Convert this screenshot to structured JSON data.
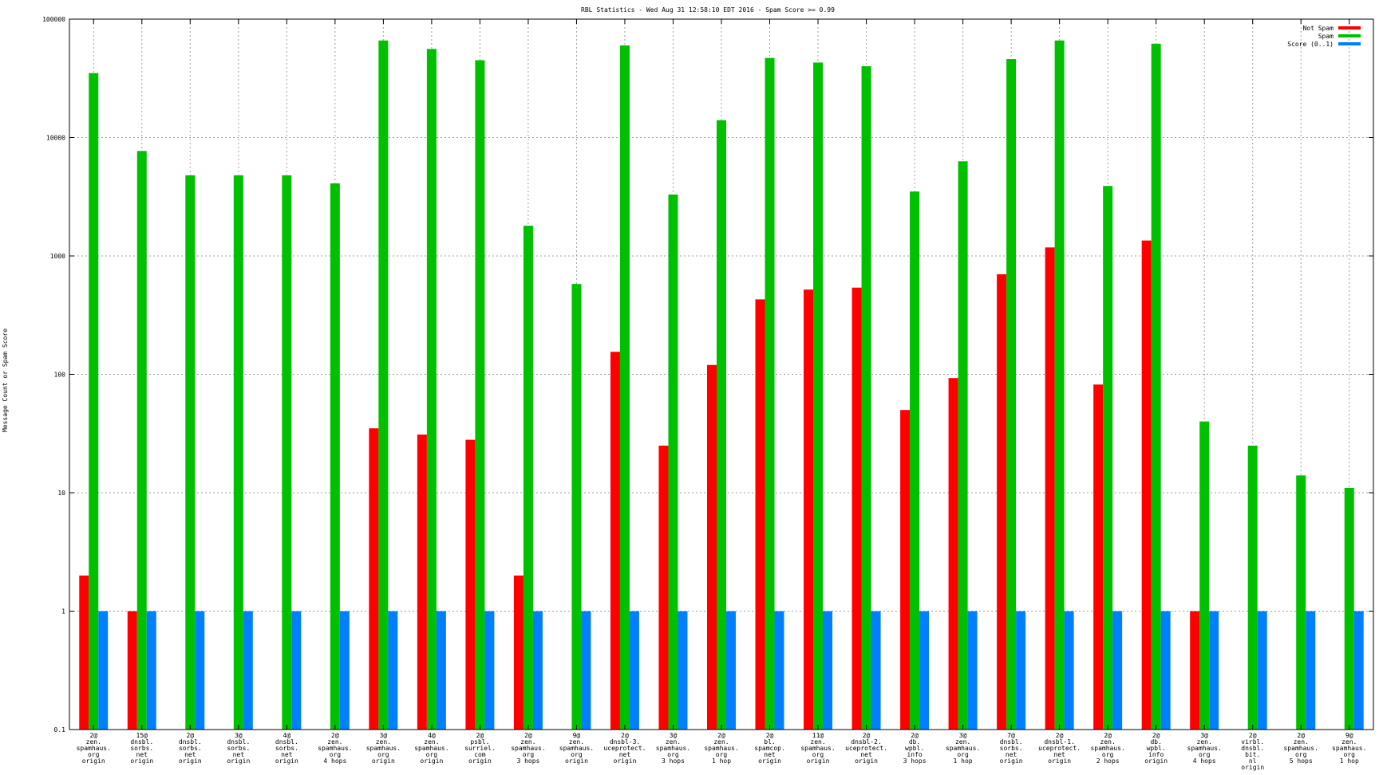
{
  "chart_data": {
    "type": "bar",
    "title": "RBL Statistics - Wed Aug 31 12:58:10 EDT 2016 - Spam Score >= 0.99",
    "xlabel": "",
    "ylabel": "Message Count or Spam Score",
    "yscale": "log",
    "ylim": [
      0.1,
      100000
    ],
    "yticks": [
      0.1,
      1,
      10,
      100,
      1000,
      10000,
      100000
    ],
    "ytick_labels": [
      "0.1",
      "1",
      "10",
      "100",
      "1000",
      "10000",
      "100000"
    ],
    "grid": true,
    "legend_position": "top-right",
    "categories": [
      [
        "2@",
        "zen.",
        "spamhaus.",
        "org",
        "origin"
      ],
      [
        "15@",
        "dnsbl.",
        "sorbs.",
        "net",
        "origin"
      ],
      [
        "2@",
        "dnsbl.",
        "sorbs.",
        "net",
        "origin"
      ],
      [
        "3@",
        "dnsbl.",
        "sorbs.",
        "net",
        "origin"
      ],
      [
        "4@",
        "dnsbl.",
        "sorbs.",
        "net",
        "origin"
      ],
      [
        "2@",
        "zen.",
        "spamhaus.",
        "org",
        "4 hops"
      ],
      [
        "3@",
        "zen.",
        "spamhaus.",
        "org",
        "origin"
      ],
      [
        "4@",
        "zen.",
        "spamhaus.",
        "org",
        "origin"
      ],
      [
        "2@",
        "psbl.",
        "surriel.",
        "com",
        "origin"
      ],
      [
        "2@",
        "zen.",
        "spamhaus.",
        "org",
        "3 hops"
      ],
      [
        "9@",
        "zen.",
        "spamhaus.",
        "org",
        "origin"
      ],
      [
        "2@",
        "dnsbl-3.",
        "uceprotect.",
        "net",
        "origin"
      ],
      [
        "3@",
        "zen.",
        "spamhaus.",
        "org",
        "3 hops"
      ],
      [
        "2@",
        "zen.",
        "spamhaus.",
        "org",
        "1 hop"
      ],
      [
        "2@",
        "bl.",
        "spamcop.",
        "net",
        "origin"
      ],
      [
        "11@",
        "zen.",
        "spamhaus.",
        "org",
        "origin"
      ],
      [
        "2@",
        "dnsbl-2.",
        "uceprotect.",
        "net",
        "origin"
      ],
      [
        "2@",
        "db.",
        "wpbl.",
        "info",
        "3 hops"
      ],
      [
        "3@",
        "zen.",
        "spamhaus.",
        "org",
        "1 hop"
      ],
      [
        "7@",
        "dnsbl.",
        "sorbs.",
        "net",
        "origin"
      ],
      [
        "2@",
        "dnsbl-1.",
        "uceprotect.",
        "net",
        "origin"
      ],
      [
        "2@",
        "zen.",
        "spamhaus.",
        "org",
        "2 hops"
      ],
      [
        "2@",
        "db.",
        "wpbl.",
        "info",
        "origin"
      ],
      [
        "3@",
        "zen.",
        "spamhaus.",
        "org",
        "4 hops"
      ],
      [
        "2@",
        "virbl.",
        "dnsbl.",
        "bit.",
        "nl",
        "origin"
      ],
      [
        "2@",
        "zen.",
        "spamhaus.",
        "org",
        "5 hops"
      ],
      [
        "9@",
        "zen.",
        "spamhaus.",
        "org",
        "1 hop"
      ]
    ],
    "series": [
      {
        "name": "Not Spam",
        "color": "#ff0000",
        "values": [
          2,
          1,
          null,
          null,
          null,
          null,
          35,
          31,
          28,
          2,
          null,
          155,
          25,
          120,
          430,
          520,
          540,
          50,
          93,
          700,
          1180,
          82,
          1350,
          1,
          null,
          null,
          null
        ]
      },
      {
        "name": "Spam",
        "color": "#00c000",
        "values": [
          35000,
          7700,
          4800,
          4800,
          4800,
          4100,
          66000,
          56000,
          45000,
          1800,
          580,
          60000,
          3300,
          14000,
          47000,
          43000,
          40000,
          3500,
          6300,
          46000,
          66000,
          3900,
          62000,
          40,
          25,
          14,
          11
        ]
      },
      {
        "name": "Score (0..1)",
        "color": "#0080ff",
        "values": [
          1,
          1,
          1,
          1,
          1,
          1,
          1,
          1,
          1,
          1,
          1,
          1,
          1,
          1,
          1,
          1,
          1,
          1,
          1,
          1,
          1,
          1,
          1,
          1,
          1,
          1,
          1
        ]
      }
    ]
  }
}
